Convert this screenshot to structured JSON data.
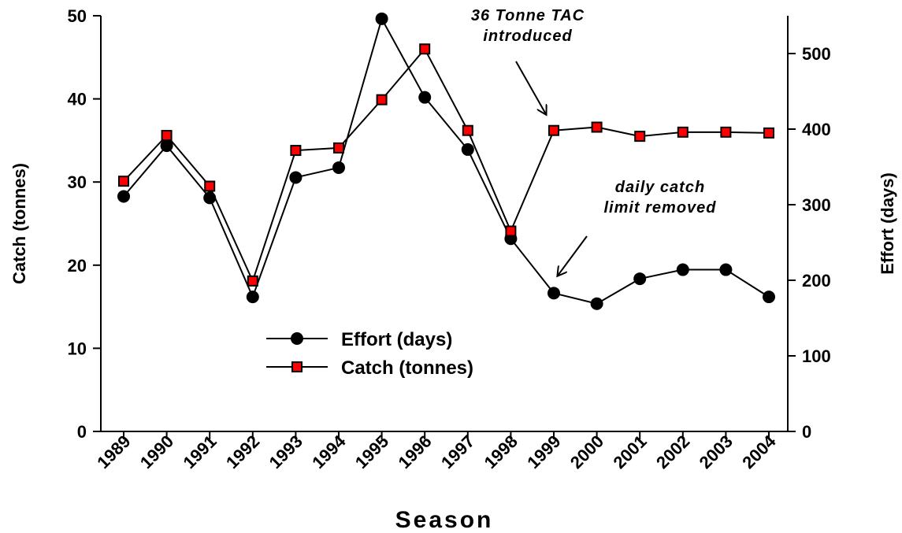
{
  "chart_data": {
    "type": "line",
    "xlabel": "Season",
    "ylabel": "Catch (tonnes)",
    "y2label": "Effort (days)",
    "categories": [
      "1989",
      "1990",
      "1991",
      "1992",
      "1993",
      "1994",
      "1995",
      "1996",
      "1997",
      "1998",
      "1999",
      "2000",
      "2001",
      "2002",
      "2003",
      "2004"
    ],
    "ylim": [
      0,
      50
    ],
    "yticks": [
      0,
      10,
      20,
      30,
      40,
      50
    ],
    "y2lim": [
      0,
      550
    ],
    "y2ticks": [
      0,
      100,
      200,
      300,
      400,
      500
    ],
    "legend": "center",
    "series": [
      {
        "name": "Effort (days)",
        "axis": "y2",
        "color": "#000000",
        "marker": "circle",
        "values": [
          311,
          378,
          309,
          178,
          336,
          349,
          546,
          442,
          373,
          255,
          183,
          169,
          202,
          214,
          214,
          178
        ]
      },
      {
        "name": "Catch (tonnes)",
        "color": "#ff0000",
        "marker": "square",
        "values": [
          30.1,
          35.6,
          29.5,
          18.1,
          33.8,
          34.1,
          39.9,
          46.0,
          36.2,
          24.1,
          36.2,
          36.6,
          35.5,
          36.0,
          36.0,
          35.9
        ]
      }
    ],
    "annotations": [
      {
        "lines": [
          "36 Tonne TAC",
          "introduced"
        ]
      },
      {
        "lines": [
          "daily catch",
          "limit removed"
        ]
      }
    ]
  }
}
